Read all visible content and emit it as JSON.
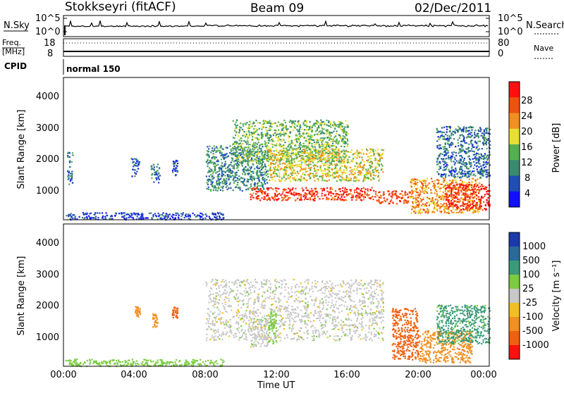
{
  "header": {
    "station": "Stokkseyri (fitACF)",
    "beam": "Beam 09",
    "date": "02/Dec/2011"
  },
  "top_panels": {
    "nsky_label": "N.Sky",
    "nsearch_label": "N.Search",
    "noise_ticks_left": [
      "10^5",
      "10^0"
    ],
    "noise_ticks_right": [
      "10^5",
      "10^0"
    ],
    "freq_label": "Freq.",
    "freq_unit": "[MHz]",
    "freq_ticks": [
      "18",
      "8"
    ],
    "nave_label": "Nave",
    "nave_ticks": [
      "80",
      "0"
    ],
    "cpid_label": "CPID",
    "cpid_value": "normal 150"
  },
  "axes": {
    "ylabel": "Slant Range [km]",
    "y_ticks": [
      "1000",
      "2000",
      "3000",
      "4000"
    ],
    "x_ticks": [
      "00:00",
      "04:00",
      "08:00",
      "12:00",
      "16:00",
      "20:00",
      "00:00"
    ],
    "xlabel": "Time UT"
  },
  "power_scale": {
    "label": "Power [dB]",
    "ticks": [
      "4",
      "8",
      "12",
      "16",
      "20",
      "24",
      "28"
    ],
    "colors": [
      "#1010ff",
      "#1f4fb5",
      "#3a8a70",
      "#55b050",
      "#e8e030",
      "#f09020",
      "#f05010",
      "#ff1010"
    ]
  },
  "velocity_scale": {
    "label": "Velocity [m s⁻¹]",
    "ticks": [
      "1000",
      "500",
      "100",
      "25",
      "-25",
      "-100",
      "-500",
      "-1000"
    ],
    "colors": [
      "#1a3aaa",
      "#2a6a9a",
      "#3a9a7a",
      "#7acc40",
      "#c8c8c8",
      "#f0c020",
      "#f09020",
      "#f06010",
      "#ff1010"
    ]
  },
  "chart_data": [
    {
      "type": "heatmap",
      "title": "",
      "quantity": "Power",
      "xlabel": "Time UT",
      "ylabel": "Slant Range [km]",
      "xlim": [
        0,
        24
      ],
      "ylim": [
        180,
        4600
      ],
      "colorbar": {
        "label": "Power [dB]",
        "range": [
          0,
          32
        ],
        "ticks": [
          4,
          8,
          12,
          16,
          20,
          24,
          28
        ]
      },
      "regions": [
        {
          "t": [
            0.1,
            9.0
          ],
          "range_km": [
            200,
            420
          ],
          "value": 5
        },
        {
          "t": [
            0.2,
            0.5
          ],
          "range_km": [
            1300,
            2300
          ],
          "value": 8
        },
        {
          "t": [
            3.8,
            4.3
          ],
          "range_km": [
            1550,
            2100
          ],
          "value": 6
        },
        {
          "t": [
            4.9,
            5.4
          ],
          "range_km": [
            1350,
            1950
          ],
          "value": 8
        },
        {
          "t": [
            6.1,
            6.4
          ],
          "range_km": [
            1550,
            2050
          ],
          "value": 6
        },
        {
          "t": [
            8.0,
            11.5
          ],
          "range_km": [
            1100,
            2500
          ],
          "value": 10
        },
        {
          "t": [
            9.5,
            16.0
          ],
          "range_km": [
            2000,
            3300
          ],
          "value": 14
        },
        {
          "t": [
            11.5,
            18.0
          ],
          "range_km": [
            1400,
            2400
          ],
          "value": 18
        },
        {
          "t": [
            10.5,
            17.5
          ],
          "range_km": [
            800,
            1200
          ],
          "value": 28
        },
        {
          "t": [
            17.5,
            19.5
          ],
          "range_km": [
            700,
            1100
          ],
          "value": 26
        },
        {
          "t": [
            19.5,
            23.5
          ],
          "range_km": [
            400,
            1500
          ],
          "value": 22
        },
        {
          "t": [
            21.5,
            24.0
          ],
          "range_km": [
            500,
            1300
          ],
          "value": 29
        },
        {
          "t": [
            21.0,
            24.0
          ],
          "range_km": [
            1500,
            3100
          ],
          "value": 8
        }
      ]
    },
    {
      "type": "heatmap",
      "title": "",
      "quantity": "Velocity",
      "xlabel": "Time UT",
      "ylabel": "Slant Range [km]",
      "xlim": [
        0,
        24
      ],
      "ylim": [
        180,
        4600
      ],
      "colorbar": {
        "label": "Velocity [m s⁻¹]",
        "ticks": [
          1000,
          500,
          100,
          25,
          -25,
          -100,
          -500,
          -1000
        ]
      },
      "regions": [
        {
          "t": [
            0.1,
            9.0
          ],
          "range_km": [
            200,
            420
          ],
          "value": 60
        },
        {
          "t": [
            4.0,
            4.3
          ],
          "range_km": [
            1700,
            2050
          ],
          "value": -300
        },
        {
          "t": [
            5.0,
            5.3
          ],
          "range_km": [
            1400,
            1850
          ],
          "value": -200
        },
        {
          "t": [
            6.1,
            6.4
          ],
          "range_km": [
            1700,
            2050
          ],
          "value": -600
        },
        {
          "t": [
            8.0,
            18.0
          ],
          "range_km": [
            1000,
            2900
          ],
          "value": 0
        },
        {
          "t": [
            10.5,
            11.5
          ],
          "range_km": [
            800,
            1700
          ],
          "value": 0
        },
        {
          "t": [
            11.5,
            12.0
          ],
          "range_km": [
            900,
            1900
          ],
          "value": 70
        },
        {
          "t": [
            18.5,
            20.0
          ],
          "range_km": [
            400,
            2000
          ],
          "value": -700
        },
        {
          "t": [
            20.0,
            23.0
          ],
          "range_km": [
            300,
            1300
          ],
          "value": -250
        },
        {
          "t": [
            21.0,
            24.0
          ],
          "range_km": [
            900,
            2100
          ],
          "value": 120
        }
      ]
    }
  ]
}
